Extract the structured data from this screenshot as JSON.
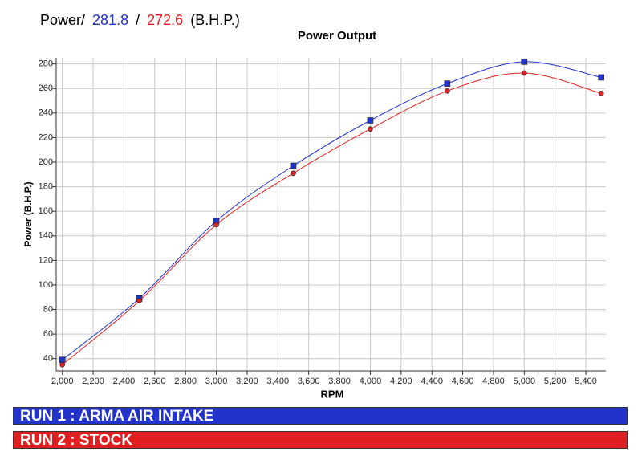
{
  "chart_data": {
    "type": "line",
    "headline": [
      "Power/",
      "281.8",
      "/",
      "272.6",
      "(B.H.P.)"
    ],
    "title": "Power Output",
    "xlabel": "RPM",
    "ylabel": "Power (B.H.P.)",
    "x": [
      2000,
      2500,
      3000,
      3500,
      4000,
      4500,
      5000,
      5500
    ],
    "series": [
      {
        "name": "RUN 1 : ARMA AIR INTAKE",
        "color": "#2233cc",
        "marker": "square",
        "values": [
          39,
          89,
          152,
          197,
          234,
          264,
          281.8,
          269
        ]
      },
      {
        "name": "RUN 2 : STOCK",
        "color": "#e02020",
        "marker": "circle",
        "values": [
          35,
          87,
          149,
          191,
          227,
          258,
          272.6,
          256
        ]
      }
    ],
    "xlim": [
      1960,
      5530
    ],
    "ylim": [
      30,
      285
    ],
    "xticks": [
      {
        "value": 2000,
        "label": "2,000"
      },
      {
        "value": 2200,
        "label": "2,200"
      },
      {
        "value": 2400,
        "label": "2,400"
      },
      {
        "value": 2600,
        "label": "2,600"
      },
      {
        "value": 2800,
        "label": "2,800"
      },
      {
        "value": 3000,
        "label": "3,000"
      },
      {
        "value": 3200,
        "label": "3,200"
      },
      {
        "value": 3400,
        "label": "3,400"
      },
      {
        "value": 3600,
        "label": "3,600"
      },
      {
        "value": 3800,
        "label": "3,800"
      },
      {
        "value": 4000,
        "label": "4,000"
      },
      {
        "value": 4200,
        "label": "4,200"
      },
      {
        "value": 4400,
        "label": "4,400"
      },
      {
        "value": 4600,
        "label": "4,600"
      },
      {
        "value": 4800,
        "label": "4,800"
      },
      {
        "value": 5000,
        "label": "5,000"
      },
      {
        "value": 5200,
        "label": "5,200"
      },
      {
        "value": 5400,
        "label": "5,400"
      }
    ],
    "yticks": [
      40,
      60,
      80,
      100,
      120,
      140,
      160,
      180,
      200,
      220,
      240,
      260,
      280
    ],
    "grid": true
  }
}
